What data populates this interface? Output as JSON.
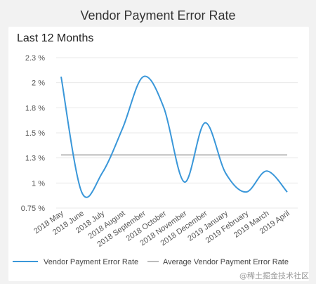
{
  "header": {
    "title": "Vendor Payment Error Rate"
  },
  "card": {
    "subtitle": "Last 12 Months"
  },
  "watermark": "@稀土掘金技术社区",
  "colors": {
    "series": "#3a97d9",
    "average": "#bbbbbb",
    "grid": "#e8e8e8"
  },
  "chart_data": {
    "type": "line",
    "title": "Vendor Payment Error Rate",
    "subtitle": "Last 12 Months",
    "categories": [
      "2018 May",
      "2018 June",
      "2018 July",
      "2018 August",
      "2018 September",
      "2018 October",
      "2018 November",
      "2018 December",
      "2019 January",
      "2019 February",
      "2019 March",
      "2019 April"
    ],
    "y_ticks": [
      "2.3 %",
      "2 %",
      "1.8 %",
      "1.5 %",
      "1.3 %",
      "1 %",
      "0.75 %"
    ],
    "y_tick_values": [
      2.25,
      2.0,
      1.75,
      1.5,
      1.25,
      1.0,
      0.75
    ],
    "ylim": [
      0.75,
      2.25
    ],
    "grid": true,
    "legend_position": "bottom",
    "series": [
      {
        "name": "Vendor Payment Error Rate",
        "type": "line",
        "values": [
          2.06,
          0.91,
          1.1,
          1.55,
          2.06,
          1.75,
          1.01,
          1.6,
          1.1,
          0.91,
          1.12,
          0.91
        ]
      },
      {
        "name": "Average Vendor Payment Error Rate",
        "type": "line",
        "values": [
          1.28,
          1.28,
          1.28,
          1.28,
          1.28,
          1.28,
          1.28,
          1.28,
          1.28,
          1.28,
          1.28,
          1.28
        ]
      }
    ]
  }
}
